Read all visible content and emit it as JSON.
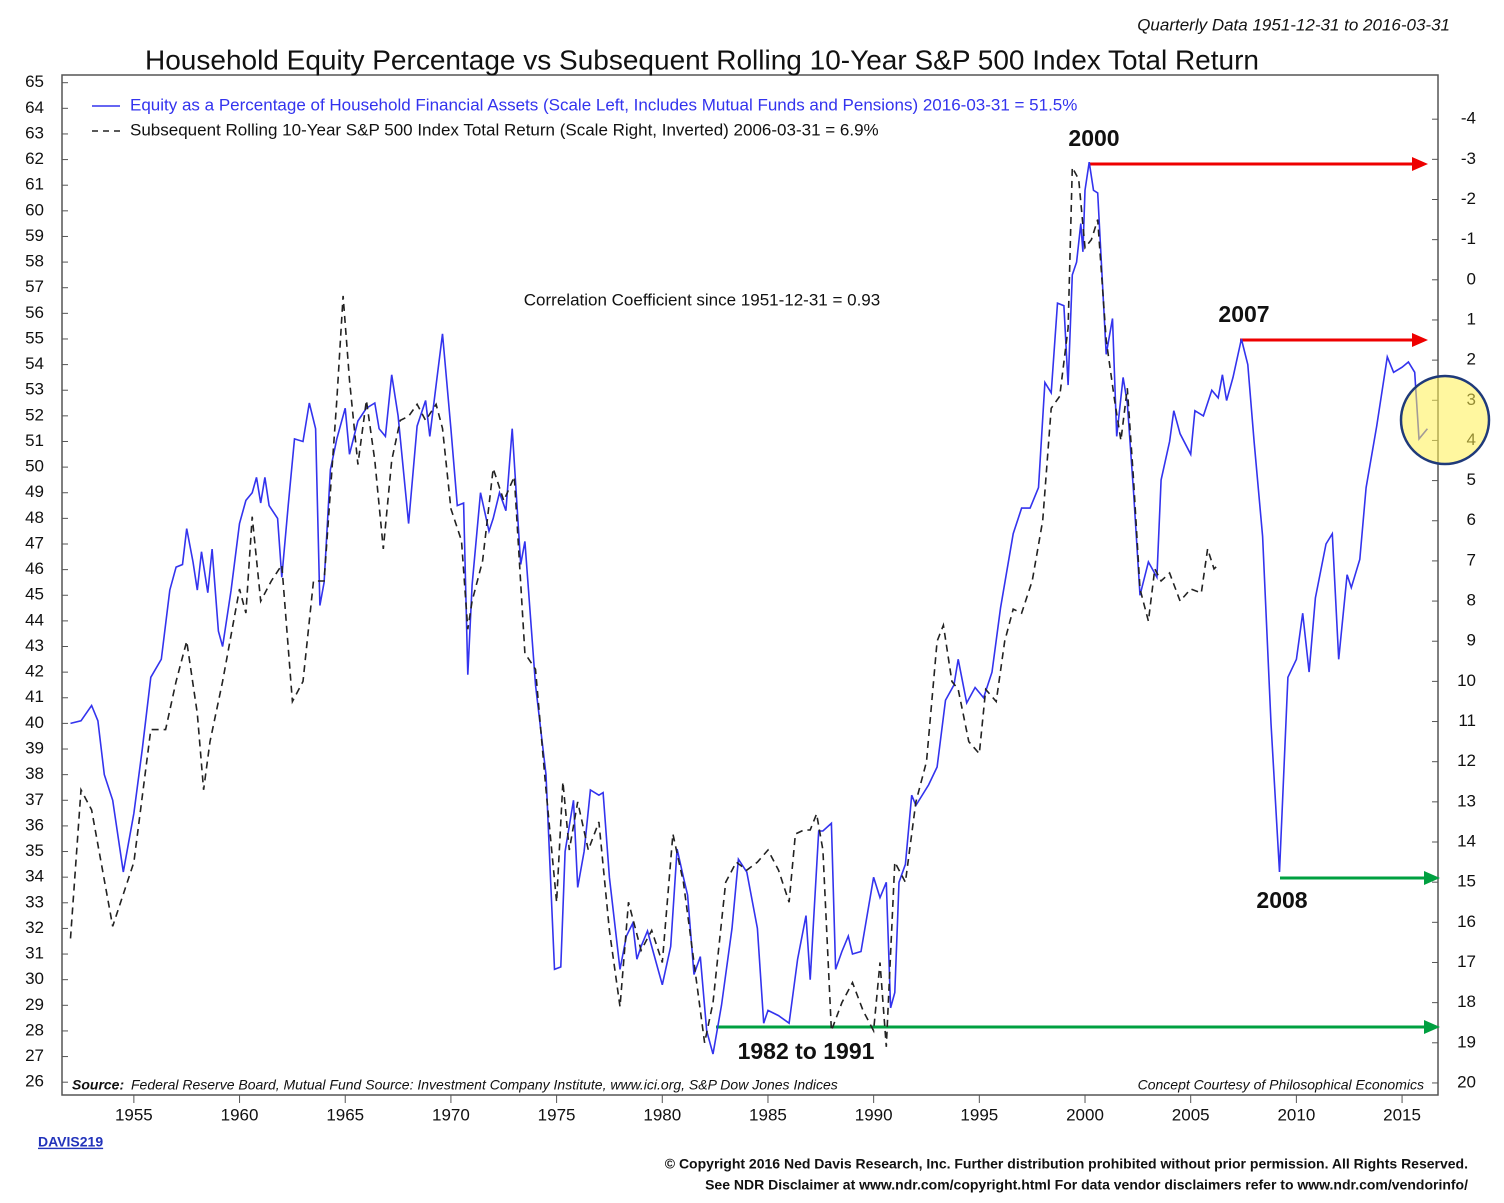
{
  "chart_data": {
    "type": "line",
    "title": "Household Equity Percentage vs Subsequent Rolling 10-Year S&P 500 Index Total Return",
    "subtitle": "Quarterly Data 1951-12-31 to 2016-03-31",
    "annotations": [
      "Correlation Coefficient since 1951-12-31 = 0.93",
      "2000",
      "2007",
      "2008",
      "1982 to 1991"
    ],
    "source_label": "Source:",
    "source": "Federal Reserve Board, Mutual Fund Source: Investment Company Institute, www.ici.org, S&P Dow Jones Indices",
    "credit": "Concept Courtesy of Philosophical Economics",
    "chart_id": "DAVIS219",
    "footer": [
      "© Copyright 2016 Ned Davis Research, Inc. Further distribution prohibited without prior permission. All Rights Reserved.",
      "See NDR Disclaimer at www.ndr.com/copyright.html  For data vendor disclaimers refer to www.ndr.com/vendorinfo/"
    ],
    "xlim": [
      1951.6,
      2016.7
    ],
    "xticks": [
      1955,
      1960,
      1965,
      1970,
      1975,
      1980,
      1985,
      1990,
      1995,
      2000,
      2005,
      2010,
      2015
    ],
    "ylim": [
      25.5,
      65.3
    ],
    "yticks": [
      26,
      27,
      28,
      29,
      30,
      31,
      32,
      33,
      34,
      35,
      36,
      37,
      38,
      39,
      40,
      41,
      42,
      43,
      44,
      45,
      46,
      47,
      48,
      49,
      50,
      51,
      52,
      53,
      54,
      55,
      56,
      57,
      58,
      59,
      60,
      61,
      62,
      63,
      64,
      65
    ],
    "y2lim": [
      20.3,
      -5.1
    ],
    "y2ticks": [
      -4,
      -3,
      -2,
      -1,
      0,
      1,
      2,
      3,
      4,
      5,
      6,
      7,
      8,
      9,
      10,
      11,
      12,
      13,
      14,
      15,
      16,
      17,
      18,
      19,
      20
    ],
    "y2_inverted": true,
    "series": [
      {
        "name": "Equity as a Percentage of Household Financial Assets (Scale Left, Includes Mutual Funds and Pensions) 2016-03-31 = 51.5%",
        "color": "#3333ee",
        "dashed": false,
        "axis": "y",
        "x": [
          1952,
          1952.5,
          1953,
          1953.3,
          1953.6,
          1954,
          1954.5,
          1955,
          1955.4,
          1955.8,
          1956.3,
          1956.7,
          1957,
          1957.3,
          1957.5,
          1957.8,
          1958,
          1958.2,
          1958.5,
          1958.7,
          1959,
          1959.2,
          1959.6,
          1960,
          1960.3,
          1960.6,
          1960.8,
          1961,
          1961.2,
          1961.4,
          1961.8,
          1962,
          1962.3,
          1962.6,
          1963,
          1963.3,
          1963.6,
          1963.8,
          1964,
          1964.3,
          1964.6,
          1965,
          1965.2,
          1965.6,
          1966,
          1966.4,
          1966.6,
          1966.9,
          1967.2,
          1967.5,
          1968,
          1968.4,
          1968.8,
          1969,
          1969.3,
          1969.6,
          1970,
          1970.3,
          1970.6,
          1970.8,
          1971,
          1971.4,
          1971.8,
          1972,
          1972.3,
          1972.6,
          1972.9,
          1973.3,
          1973.5,
          1974,
          1974.5,
          1974.9,
          1975.2,
          1975.4,
          1975.8,
          1976,
          1976.3,
          1976.6,
          1977,
          1977.2,
          1977.5,
          1978,
          1978.3,
          1978.6,
          1978.8,
          1979,
          1979.3,
          1979.6,
          1980,
          1980.4,
          1980.7,
          1981,
          1981.2,
          1981.5,
          1981.8,
          1982.1,
          1982.4,
          1982.8,
          1983.3,
          1983.6,
          1984,
          1984.5,
          1984.8,
          1985,
          1985.5,
          1986,
          1986.4,
          1986.8,
          1987,
          1987.4,
          1987.6,
          1988,
          1988.2,
          1988.5,
          1988.8,
          1989,
          1989.4,
          1990,
          1990.3,
          1990.6,
          1990.8,
          1991,
          1991.2,
          1991.5,
          1991.8,
          1992,
          1992.6,
          1993,
          1993.4,
          1993.8,
          1994,
          1994.4,
          1994.8,
          1995.2,
          1995.6,
          1996,
          1996.6,
          1997,
          1997.4,
          1997.8,
          1998.1,
          1998.4,
          1998.7,
          1999,
          1999.2,
          1999.4,
          1999.6,
          1999.8,
          1999.9,
          2000,
          2000.2,
          2000.4,
          2000.6,
          2001,
          2001.3,
          2001.5,
          2001.8,
          2002,
          2002.3,
          2002.6,
          2003,
          2003.4,
          2003.6,
          2004,
          2004.2,
          2004.5,
          2005,
          2005.2,
          2005.6,
          2006,
          2006.3,
          2006.5,
          2006.7,
          2007,
          2007.4,
          2007.7,
          2008,
          2008.4,
          2008.8,
          2009.2,
          2009.6,
          2010,
          2010.3,
          2010.6,
          2010.9,
          2011.4,
          2011.7,
          2012,
          2012.4,
          2012.6,
          2013,
          2013.3,
          2013.8,
          2014.3,
          2014.6,
          2015,
          2015.3,
          2015.6,
          2015.8,
          2016.2
        ],
        "values": [
          40,
          40.1,
          40.7,
          40.1,
          38,
          37,
          34.2,
          36.5,
          39,
          41.8,
          42.5,
          45.2,
          46.1,
          46.2,
          47.6,
          46.3,
          45.2,
          46.7,
          45.1,
          46.8,
          43.6,
          43,
          45.2,
          47.8,
          48.7,
          49,
          49.6,
          48.6,
          49.6,
          48.5,
          48,
          45.7,
          48.5,
          51.1,
          51,
          52.5,
          51.5,
          44.6,
          45.5,
          49.9,
          51.1,
          52.3,
          50.5,
          51.8,
          52.3,
          52.5,
          51.5,
          51.2,
          53.6,
          52,
          47.8,
          51.6,
          52.6,
          51.2,
          53.2,
          55.2,
          51.5,
          48.5,
          48.6,
          41.9,
          45.4,
          49,
          47.5,
          48,
          49,
          48.3,
          51.5,
          46.2,
          47.1,
          41.5,
          38,
          30.4,
          30.5,
          35,
          37,
          33.6,
          35,
          37.4,
          37.2,
          37.3,
          34,
          30.4,
          31.7,
          32.2,
          30.8,
          31.3,
          31.9,
          31,
          29.8,
          31.3,
          35.1,
          34,
          33.3,
          30.2,
          30.9,
          28,
          27.1,
          29,
          32,
          34.7,
          34.2,
          32,
          28.3,
          28.8,
          28.6,
          28.3,
          30.8,
          32.5,
          30,
          35.8,
          35.8,
          36.1,
          30.4,
          31.1,
          31.7,
          31,
          31.1,
          34,
          33.2,
          33.8,
          28.9,
          29.5,
          33.8,
          34.5,
          37.2,
          36.8,
          37.6,
          38.3,
          40.9,
          41.5,
          42.5,
          40.8,
          41.4,
          41,
          42,
          44.5,
          47.4,
          48.4,
          48.4,
          49.2,
          53.3,
          52.9,
          56.4,
          56.3,
          53.2,
          57.5,
          58,
          59.5,
          58.4,
          60.8,
          61.9,
          60.8,
          60.7,
          54.4,
          55.8,
          51.2,
          53.5,
          52.5,
          49,
          45,
          46.3,
          45.7,
          49.5,
          51,
          52.2,
          51.3,
          50.5,
          52.2,
          52,
          53,
          52.7,
          53.6,
          52.6,
          53.5,
          55,
          54,
          51,
          47.3,
          40,
          34.2,
          41.8,
          42.5,
          44.3,
          42,
          44.9,
          47,
          47.4,
          42.5,
          45.8,
          45.3,
          46.4,
          49.2,
          51.6,
          54.3,
          53.7,
          53.9,
          54.1,
          53.7,
          51.1,
          51.5
        ]
      },
      {
        "name": "Subsequent Rolling 10-Year S&P 500 Index Total Return (Scale Right, Inverted) 2006-03-31 = 6.9%",
        "color": "#222222",
        "dashed": true,
        "axis": "y2",
        "x": [
          1952,
          1952.5,
          1953,
          1954,
          1955,
          1955.8,
          1956.5,
          1957,
          1957.5,
          1958,
          1958.3,
          1958.6,
          1959.2,
          1960,
          1960.3,
          1960.6,
          1961,
          1961.5,
          1962,
          1962.5,
          1963,
          1963.5,
          1964,
          1964.6,
          1964.9,
          1965.2,
          1965.6,
          1966,
          1966.4,
          1966.8,
          1967.2,
          1967.6,
          1968,
          1968.4,
          1968.8,
          1969.3,
          1969.6,
          1970,
          1970.5,
          1970.8,
          1971,
          1971.5,
          1972,
          1972.5,
          1973,
          1973.5,
          1974,
          1974.5,
          1975,
          1975.3,
          1975.6,
          1976,
          1976.5,
          1977,
          1977.5,
          1978,
          1978.4,
          1979,
          1979.5,
          1980,
          1980.5,
          1981,
          1981.5,
          1982,
          1982.4,
          1983,
          1983.5,
          1984,
          1984.5,
          1985,
          1985.5,
          1986,
          1986.3,
          1986.7,
          1987,
          1987.3,
          1987.6,
          1988,
          1988.5,
          1989,
          1989.5,
          1990,
          1990.3,
          1990.6,
          1991,
          1991.5,
          1992,
          1992.5,
          1993,
          1993.3,
          1993.7,
          1994,
          1994.5,
          1995,
          1995.3,
          1995.8,
          1996.2,
          1996.6,
          1997,
          1997.5,
          1998,
          1998.4,
          1998.8,
          1999.2,
          1999.4,
          1999.7,
          2000,
          2000.3,
          2000.6,
          2001,
          2001.4,
          2001.7,
          2002,
          2002.3,
          2002.6,
          2003,
          2003.3,
          2003.6,
          2004,
          2004.5,
          2005,
          2005.5,
          2005.8,
          2006.1,
          2006.3
        ],
        "values": [
          16.4,
          12.7,
          13.2,
          16.1,
          14.5,
          11.2,
          11.2,
          10,
          9,
          10.8,
          12.7,
          11.5,
          10,
          7.7,
          8.3,
          5.9,
          8,
          7.5,
          7.1,
          10.5,
          10,
          7.5,
          7.5,
          3,
          0.4,
          2.5,
          4.6,
          3,
          4.5,
          6.7,
          4.5,
          3.5,
          3.4,
          3.1,
          3.5,
          3.1,
          3.7,
          5.7,
          6.5,
          8.7,
          8,
          7,
          4.7,
          5.5,
          4.9,
          9.3,
          9.7,
          12.7,
          15.5,
          12.5,
          14.2,
          13,
          14.2,
          13.5,
          16.2,
          18.1,
          15.5,
          16.7,
          16.2,
          17,
          13.8,
          15,
          17,
          19,
          18,
          15,
          14.5,
          14.7,
          14.5,
          14.2,
          14.7,
          15.5,
          13.8,
          13.7,
          13.7,
          13.3,
          14.2,
          18.7,
          18,
          17.5,
          18.2,
          18.7,
          17,
          19.1,
          14.5,
          15,
          13,
          12,
          9,
          8.6,
          10,
          10.2,
          11.5,
          11.8,
          10.2,
          10.5,
          9,
          8.2,
          8.3,
          7.5,
          6,
          3.2,
          2.9,
          1.2,
          -2.8,
          -2.5,
          -0.8,
          -1,
          -1.5,
          1.5,
          3,
          4,
          2.7,
          5,
          7.7,
          8.5,
          7.2,
          7.5,
          7.3,
          8,
          7.7,
          7.8,
          6.7,
          7.2,
          7.1
        ]
      }
    ]
  }
}
